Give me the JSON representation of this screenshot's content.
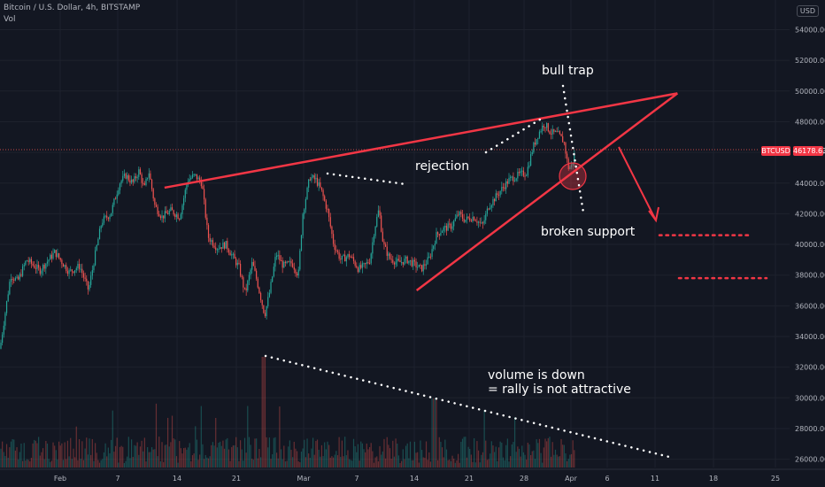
{
  "header": {
    "symbol": "Bitcoin / U.S. Dollar, 4h, BITSTAMP",
    "volume_label": "Vol",
    "currency": "USD"
  },
  "price_tag": {
    "ticker": "BTCUSD",
    "price": "46178.63"
  },
  "annotations": {
    "bull_trap": "bull trap",
    "rejection": "rejection",
    "broken_support": "broken support",
    "volume_line1": "volume is down",
    "volume_line2": "= rally is not attractive"
  },
  "colors": {
    "background": "#131722",
    "up": "#26a69a",
    "down": "#ef5350",
    "drawing": "#f23645",
    "dots": "#ffffff"
  },
  "chart_data": {
    "type": "candlestick",
    "title": "Bitcoin / U.S. Dollar, 4h, BITSTAMP",
    "x_ticks": [
      "Feb",
      "7",
      "14",
      "21",
      "Mar",
      "7",
      "14",
      "21",
      "28",
      "Apr",
      "6",
      "11",
      "18",
      "25"
    ],
    "y_ticks": [
      54000,
      52000,
      50000,
      48000,
      46000,
      44000,
      42000,
      40000,
      38000,
      36000,
      34000,
      32000,
      30000,
      28000,
      26000
    ],
    "ylim": [
      25500,
      55500
    ],
    "last_price": 46178.63,
    "price_path": [
      {
        "x": 0,
        "y": 33200
      },
      {
        "x": 12,
        "y": 38000
      },
      {
        "x": 20,
        "y": 37600
      },
      {
        "x": 30,
        "y": 39000
      },
      {
        "x": 45,
        "y": 38300
      },
      {
        "x": 62,
        "y": 39500
      },
      {
        "x": 78,
        "y": 38200
      },
      {
        "x": 90,
        "y": 38600
      },
      {
        "x": 100,
        "y": 37000
      },
      {
        "x": 108,
        "y": 39500
      },
      {
        "x": 115,
        "y": 41500
      },
      {
        "x": 125,
        "y": 42000
      },
      {
        "x": 135,
        "y": 44000
      },
      {
        "x": 142,
        "y": 44500
      },
      {
        "x": 150,
        "y": 44000
      },
      {
        "x": 157,
        "y": 44800
      },
      {
        "x": 163,
        "y": 43600
      },
      {
        "x": 168,
        "y": 44800
      },
      {
        "x": 175,
        "y": 42500
      },
      {
        "x": 183,
        "y": 41800
      },
      {
        "x": 193,
        "y": 42200
      },
      {
        "x": 203,
        "y": 41800
      },
      {
        "x": 212,
        "y": 44200
      },
      {
        "x": 220,
        "y": 44500
      },
      {
        "x": 228,
        "y": 44000
      },
      {
        "x": 235,
        "y": 40500
      },
      {
        "x": 245,
        "y": 39800
      },
      {
        "x": 255,
        "y": 40000
      },
      {
        "x": 262,
        "y": 39300
      },
      {
        "x": 270,
        "y": 38500
      },
      {
        "x": 277,
        "y": 36800
      },
      {
        "x": 285,
        "y": 38800
      },
      {
        "x": 290,
        "y": 37700
      },
      {
        "x": 299,
        "y": 35400
      },
      {
        "x": 305,
        "y": 37000
      },
      {
        "x": 312,
        "y": 39400
      },
      {
        "x": 320,
        "y": 38600
      },
      {
        "x": 330,
        "y": 38800
      },
      {
        "x": 337,
        "y": 38000
      },
      {
        "x": 342,
        "y": 42000
      },
      {
        "x": 350,
        "y": 44400
      },
      {
        "x": 357,
        "y": 44200
      },
      {
        "x": 363,
        "y": 43500
      },
      {
        "x": 370,
        "y": 42200
      },
      {
        "x": 377,
        "y": 40000
      },
      {
        "x": 385,
        "y": 39000
      },
      {
        "x": 395,
        "y": 39300
      },
      {
        "x": 405,
        "y": 38400
      },
      {
        "x": 412,
        "y": 38600
      },
      {
        "x": 418,
        "y": 39000
      },
      {
        "x": 423,
        "y": 41000
      },
      {
        "x": 428,
        "y": 42300
      },
      {
        "x": 433,
        "y": 40000
      },
      {
        "x": 440,
        "y": 39100
      },
      {
        "x": 450,
        "y": 38800
      },
      {
        "x": 460,
        "y": 39000
      },
      {
        "x": 468,
        "y": 38700
      },
      {
        "x": 476,
        "y": 38400
      },
      {
        "x": 485,
        "y": 39100
      },
      {
        "x": 493,
        "y": 40600
      },
      {
        "x": 500,
        "y": 41000
      },
      {
        "x": 510,
        "y": 41200
      },
      {
        "x": 518,
        "y": 42000
      },
      {
        "x": 525,
        "y": 41600
      },
      {
        "x": 535,
        "y": 41800
      },
      {
        "x": 545,
        "y": 41200
      },
      {
        "x": 552,
        "y": 42500
      },
      {
        "x": 560,
        "y": 43100
      },
      {
        "x": 568,
        "y": 43700
      },
      {
        "x": 575,
        "y": 44200
      },
      {
        "x": 585,
        "y": 44500
      },
      {
        "x": 595,
        "y": 44700
      },
      {
        "x": 602,
        "y": 46300
      },
      {
        "x": 608,
        "y": 47200
      },
      {
        "x": 615,
        "y": 47900
      },
      {
        "x": 622,
        "y": 47300
      },
      {
        "x": 630,
        "y": 47200
      },
      {
        "x": 637,
        "y": 46700
      },
      {
        "x": 642,
        "y": 45000
      },
      {
        "x": 646,
        "y": 45100
      },
      {
        "x": 650,
        "y": 46200
      }
    ],
    "drawings": {
      "resistance_line": [
        {
          "date": "Feb 13",
          "price": 43700
        },
        {
          "date": "Apr 13",
          "price": 49850
        }
      ],
      "support_line": [
        {
          "date": "Mar 14",
          "price": 37000
        },
        {
          "date": "Apr 13",
          "price": 49850
        }
      ],
      "target_levels": [
        40600,
        37800
      ]
    }
  }
}
